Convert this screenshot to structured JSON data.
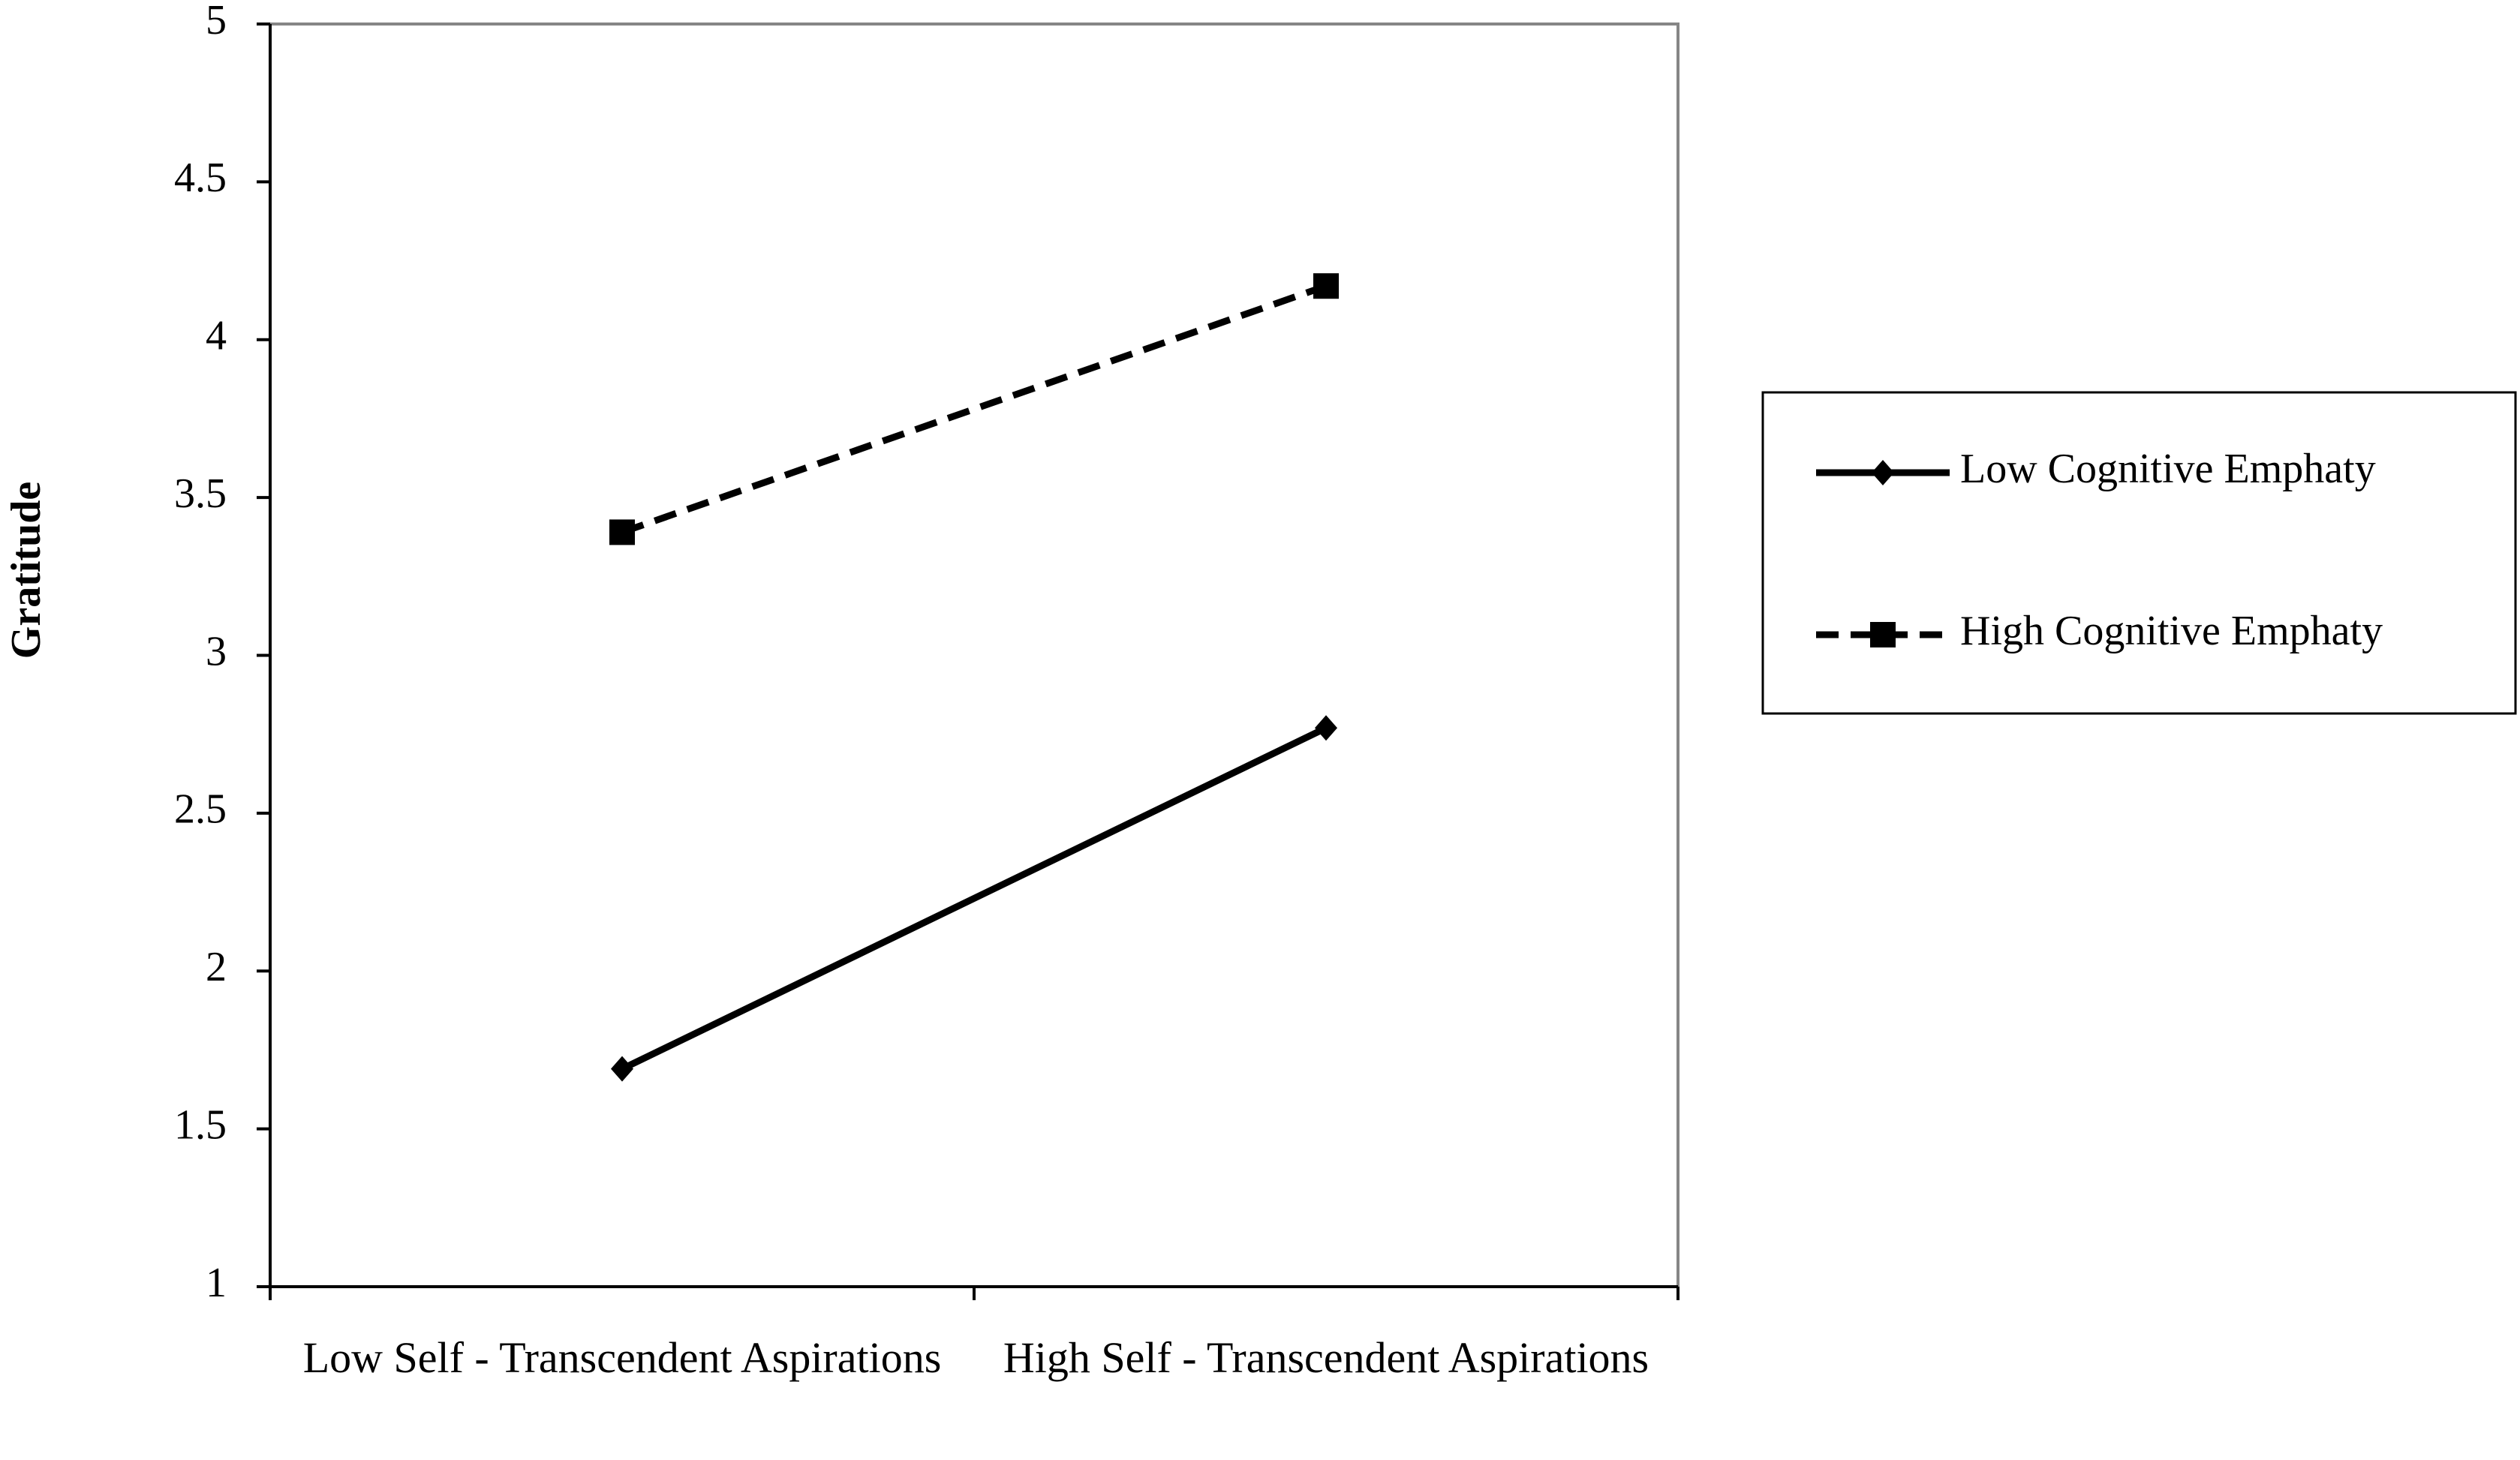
{
  "chart_data": {
    "type": "line",
    "y_label": "Gratitude",
    "categories": [
      "Low Self - Transcendent Aspirations",
      "High Self - Transcendent Aspirations"
    ],
    "series": [
      {
        "name": "Low Cognitive Emphaty",
        "color": "#000000",
        "style": "solid",
        "marker": "diamond",
        "values": [
          1.69,
          2.77
        ]
      },
      {
        "name": "High Cognitive Emphaty",
        "color": "#000000",
        "style": "dashed",
        "marker": "square",
        "values": [
          3.39,
          4.17
        ]
      }
    ],
    "ylim": [
      1,
      5
    ],
    "yticks": [
      1,
      1.5,
      2,
      2.5,
      3,
      3.5,
      4,
      4.5,
      5
    ],
    "grid": false,
    "legend": "right"
  }
}
